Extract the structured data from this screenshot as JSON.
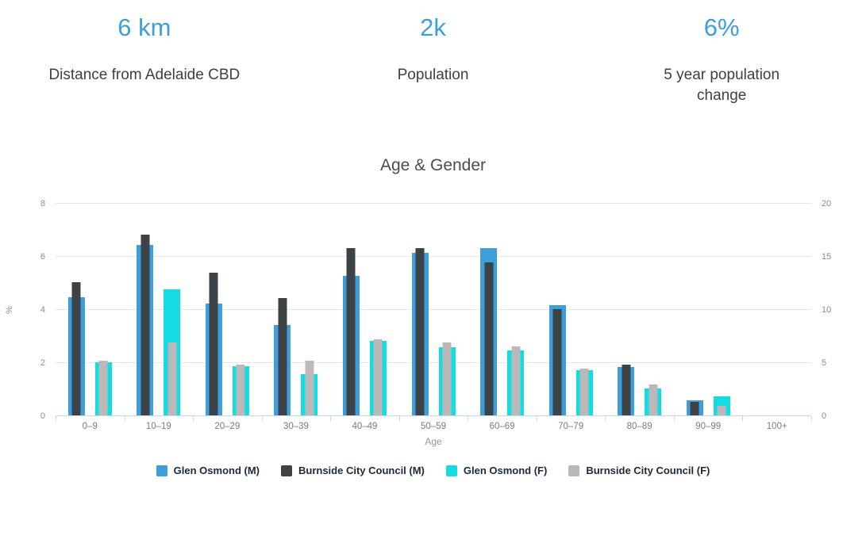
{
  "stats": [
    {
      "value": "6 km",
      "label": "Distance from Adelaide CBD"
    },
    {
      "value": "2k",
      "label": "Population"
    },
    {
      "value": "6%",
      "label": "5 year population change"
    }
  ],
  "colors": {
    "accent_blue": "#3d9fda",
    "charcoal": "#3d4246",
    "cyan": "#15dce2",
    "gray": "#bcb8b8",
    "gridline": "#e7e7e7",
    "axis_line": "#c6d9e8"
  },
  "chart_data": {
    "type": "bar",
    "title": "Age & Gender",
    "xlabel": "Age",
    "ylabel": "%",
    "grid": true,
    "legend_position": "bottom",
    "ylim_left": [
      0,
      8
    ],
    "yticks_left": [
      0,
      2,
      4,
      6,
      8
    ],
    "ylim_right": [
      0,
      20
    ],
    "yticks_right": [
      0,
      5,
      10,
      15,
      20
    ],
    "categories": [
      "0–9",
      "10–19",
      "20–29",
      "30–39",
      "40–49",
      "50–59",
      "60–69",
      "70–79",
      "80–89",
      "90–99",
      "100+"
    ],
    "series": [
      {
        "name": "Glen Osmond (M)",
        "color": "#3d9fda",
        "role": "wide-male",
        "values": [
          4.5,
          6.45,
          4.25,
          3.45,
          5.3,
          6.15,
          6.35,
          4.2,
          1.85,
          0.6,
          0
        ]
      },
      {
        "name": "Burnside City Council (M)",
        "color": "#3d4246",
        "role": "narrow-male",
        "values": [
          5.05,
          6.85,
          5.4,
          4.45,
          6.35,
          6.35,
          5.8,
          4.05,
          1.95,
          0.55,
          0
        ]
      },
      {
        "name": "Glen Osmond (F)",
        "color": "#15dce2",
        "role": "wide-female",
        "values": [
          2.05,
          4.8,
          1.9,
          1.6,
          2.85,
          2.6,
          2.5,
          1.75,
          1.05,
          0.75,
          0
        ]
      },
      {
        "name": "Burnside City Council (F)",
        "color": "#bcb8b8",
        "role": "narrow-female",
        "values": [
          2.1,
          2.8,
          1.95,
          2.1,
          2.9,
          2.8,
          2.65,
          1.8,
          1.2,
          0.4,
          0
        ]
      }
    ]
  }
}
